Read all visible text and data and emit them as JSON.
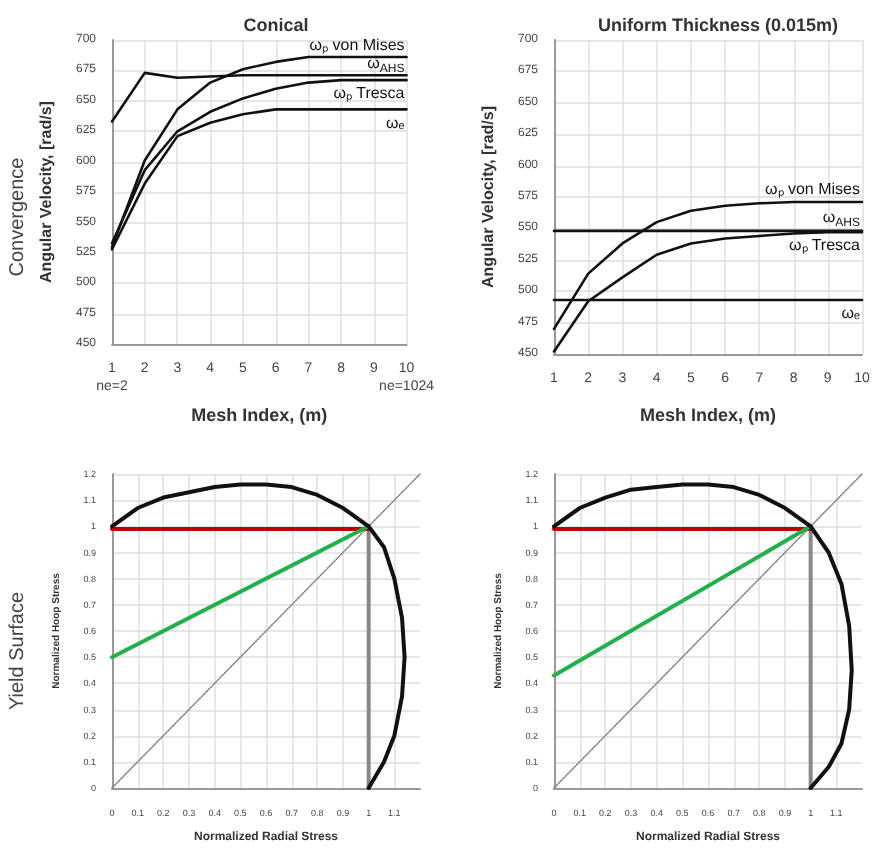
{
  "chart_data": [
    {
      "type": "line",
      "title": "Conical",
      "xlabel": "Mesh Index, (m)",
      "ylabel": "Angular Velocity, [rad/s]",
      "x": [
        1,
        2,
        3,
        4,
        5,
        6,
        7,
        8,
        9,
        10
      ],
      "xlim": [
        1,
        10
      ],
      "xticks": [
        {
          "value": 1,
          "label": "1\nne=2"
        },
        2,
        3,
        4,
        5,
        6,
        7,
        8,
        9,
        {
          "value": 10,
          "label": "10\nne=1024"
        }
      ],
      "ylim": [
        450,
        700
      ],
      "yticks": [
        450,
        475,
        500,
        525,
        550,
        575,
        600,
        625,
        650,
        675,
        700
      ],
      "grid": true,
      "marker": "none",
      "line_style": "solid",
      "annotations": [
        "Convergence"
      ],
      "series": [
        {
          "name": "ωₚ von Mises",
          "color": "#111111",
          "values": [
            530,
            601,
            643,
            665,
            676,
            682,
            686,
            686,
            686,
            686
          ]
        },
        {
          "name": "ω$_{AHS}$",
          "color": "#111111",
          "values": [
            633,
            673,
            669,
            670,
            671,
            671,
            671,
            671,
            671,
            671
          ]
        },
        {
          "name": "ωₚ Tresca",
          "color": "#111111",
          "values": [
            533,
            593,
            625,
            641,
            652,
            660,
            665,
            667,
            667,
            667
          ]
        },
        {
          "name": "ωₑ",
          "color": "#111111",
          "values": [
            528,
            582,
            621,
            632,
            639,
            643,
            643,
            643,
            643,
            643
          ]
        }
      ]
    },
    {
      "type": "line",
      "title": "Uniform Thickness (0.015m)",
      "xlabel": "Mesh Index, (m)",
      "ylabel": "Angular Velocity, [rad/s]",
      "x": [
        1,
        2,
        3,
        4,
        5,
        6,
        7,
        8,
        9,
        10
      ],
      "xlim": [
        1,
        10
      ],
      "xticks": [
        1,
        2,
        3,
        4,
        5,
        6,
        7,
        8,
        9,
        10
      ],
      "ylim": [
        450,
        700
      ],
      "yticks": [
        450,
        475,
        500,
        525,
        550,
        575,
        600,
        625,
        650,
        675,
        700
      ],
      "grid": true,
      "marker": "none",
      "line_style": "solid",
      "series": [
        {
          "name": "ωₚ von Mises",
          "color": "#111111",
          "values": [
            470,
            514,
            538,
            555,
            564,
            568,
            570,
            571,
            571,
            571
          ]
        },
        {
          "name": "ω$_{AHS}$",
          "color": "#111111",
          "values": [
            548,
            548,
            548,
            548,
            548,
            548,
            548,
            548,
            548,
            548
          ]
        },
        {
          "name": "ωₚ Tresca",
          "color": "#111111",
          "values": [
            452,
            492,
            511,
            529,
            538,
            542,
            544,
            546,
            547,
            547
          ]
        },
        {
          "name": "ωₑ",
          "color": "#111111",
          "values": [
            493,
            493,
            493,
            493,
            493,
            493,
            493,
            493,
            493,
            493
          ]
        }
      ]
    },
    {
      "type": "line",
      "xlabel": "Normalized Radial Stress",
      "ylabel": "Normalized Hoop Stress",
      "xlim": [
        0,
        1.2
      ],
      "xticks": [
        0,
        0.1,
        0.2,
        0.3,
        0.4,
        0.5,
        0.6,
        0.7,
        0.8,
        0.9,
        1,
        1.1
      ],
      "ylim": [
        0,
        1.2
      ],
      "yticks": [
        0,
        0.1,
        0.2,
        0.3,
        0.4,
        0.5,
        0.6,
        0.7,
        0.8,
        0.9,
        1,
        1.1,
        1.2
      ],
      "grid": true,
      "marker": "none",
      "annotations": [
        "Yield Surface"
      ],
      "series": [
        {
          "color": "#888888",
          "line_style": "dotted",
          "x": [
            0,
            1.2
          ],
          "values": [
            0,
            1.2
          ]
        },
        {
          "color": "#888888",
          "line_style": "solid",
          "x": [
            1,
            1
          ],
          "values": [
            0,
            1
          ]
        },
        {
          "color": "#c00000",
          "line_style": "solid",
          "x": [
            0,
            1
          ],
          "values": [
            0.99,
            0.99
          ]
        },
        {
          "color": "#22b04a",
          "line_style": "solid",
          "x": [
            0,
            1
          ],
          "values": [
            0.5,
            1
          ]
        },
        {
          "color": "#111111",
          "line_style": "solid",
          "x": [
            0,
            0.1,
            0.2,
            0.3,
            0.4,
            0.5,
            0.6,
            0.7,
            0.8,
            0.9,
            1,
            1.06,
            1.1,
            1.13,
            1.14,
            1.13,
            1.1,
            1.06,
            1
          ],
          "values": [
            1,
            1.07,
            1.11,
            1.13,
            1.15,
            1.16,
            1.16,
            1.15,
            1.12,
            1.07,
            1,
            0.92,
            0.8,
            0.65,
            0.5,
            0.35,
            0.2,
            0.1,
            0
          ]
        }
      ]
    },
    {
      "type": "line",
      "xlabel": "Normalized Radial Stress",
      "ylabel": "Normalized Hoop Stress",
      "xlim": [
        0,
        1.2
      ],
      "xticks": [
        0,
        0.1,
        0.2,
        0.3,
        0.4,
        0.5,
        0.6,
        0.7,
        0.8,
        0.9,
        1,
        1.1
      ],
      "ylim": [
        0,
        1.2
      ],
      "yticks": [
        0,
        0.1,
        0.2,
        0.3,
        0.4,
        0.5,
        0.6,
        0.7,
        0.8,
        0.9,
        1,
        1.1,
        1.2
      ],
      "grid": true,
      "marker": "none",
      "series": [
        {
          "color": "#888888",
          "line_style": "dotted",
          "x": [
            0,
            1.2
          ],
          "values": [
            0,
            1.2
          ]
        },
        {
          "color": "#888888",
          "line_style": "solid",
          "x": [
            1,
            1
          ],
          "values": [
            0,
            1
          ]
        },
        {
          "color": "#c00000",
          "line_style": "solid",
          "x": [
            0,
            1
          ],
          "values": [
            0.99,
            0.99
          ]
        },
        {
          "color": "#22b04a",
          "line_style": "solid",
          "x": [
            0,
            1
          ],
          "values": [
            0.43,
            1
          ]
        },
        {
          "color": "#111111",
          "line_style": "solid",
          "x": [
            0,
            0.1,
            0.2,
            0.3,
            0.4,
            0.5,
            0.6,
            0.7,
            0.8,
            0.9,
            1,
            1.07,
            1.12,
            1.15,
            1.16,
            1.15,
            1.12,
            1.07,
            1
          ],
          "values": [
            1,
            1.07,
            1.11,
            1.14,
            1.15,
            1.16,
            1.16,
            1.15,
            1.12,
            1.07,
            1,
            0.9,
            0.78,
            0.62,
            0.45,
            0.3,
            0.17,
            0.08,
            0
          ]
        }
      ]
    }
  ]
}
